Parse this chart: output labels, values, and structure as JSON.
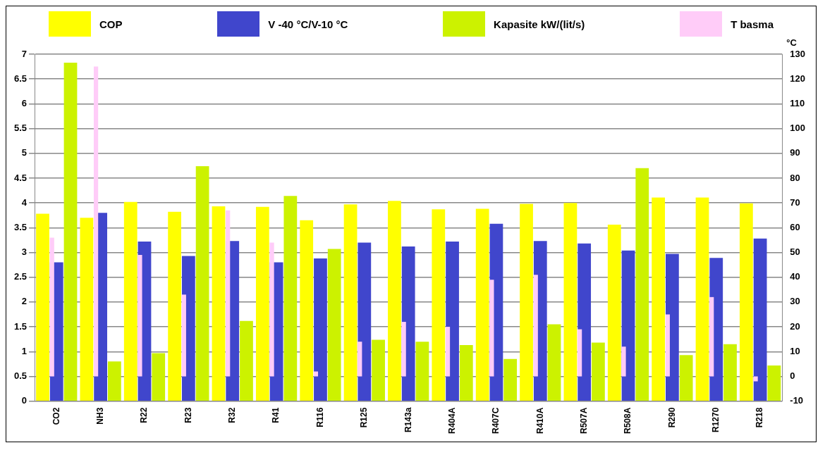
{
  "chart_data": {
    "type": "bar",
    "categories": [
      "CO2",
      "NH3",
      "R22",
      "R23",
      "R32",
      "R41",
      "R116",
      "R125",
      "R143a",
      "R404A",
      "R407C",
      "R410A",
      "R507A",
      "R508A",
      "R290",
      "R1270",
      "R218"
    ],
    "series": [
      {
        "name": "COP",
        "color": "#ffff00",
        "values": [
          3.78,
          3.7,
          4.02,
          3.82,
          3.93,
          3.92,
          3.65,
          3.97,
          4.04,
          3.87,
          3.88,
          3.98,
          4.0,
          3.56,
          4.11,
          4.11,
          3.99
        ]
      },
      {
        "name": "V -40 °C/V-10 °C",
        "color": "#4046cc",
        "values": [
          2.8,
          3.8,
          3.22,
          2.93,
          3.23,
          2.8,
          2.88,
          3.2,
          3.12,
          3.22,
          3.58,
          3.23,
          3.18,
          3.04,
          2.97,
          2.89,
          3.28
        ]
      },
      {
        "name": "Kapasite kW/(lit/s)",
        "color": "#ccf200",
        "values": [
          6.83,
          0.8,
          0.97,
          4.74,
          1.62,
          4.14,
          3.07,
          1.24,
          1.2,
          1.13,
          0.85,
          1.55,
          1.18,
          4.7,
          0.93,
          1.15,
          0.72
        ]
      },
      {
        "name": "T basma",
        "color": "#ffccf8",
        "axis": "y2",
        "values": [
          56,
          125,
          49,
          33,
          67,
          54,
          2,
          14,
          22,
          20,
          39,
          41,
          19,
          12,
          25,
          32,
          -2
        ]
      }
    ],
    "ylim": [
      0,
      7
    ],
    "yticks": [
      0,
      0.5,
      1,
      1.5,
      2,
      2.5,
      3,
      3.5,
      4,
      4.5,
      5,
      5.5,
      6,
      6.5,
      7
    ],
    "y2lim": [
      -10,
      130
    ],
    "y2ticks": [
      -10,
      0,
      10,
      20,
      30,
      40,
      50,
      60,
      70,
      80,
      90,
      100,
      110,
      120,
      130
    ],
    "y2label": "°C",
    "grid": "y",
    "legend": "top"
  }
}
